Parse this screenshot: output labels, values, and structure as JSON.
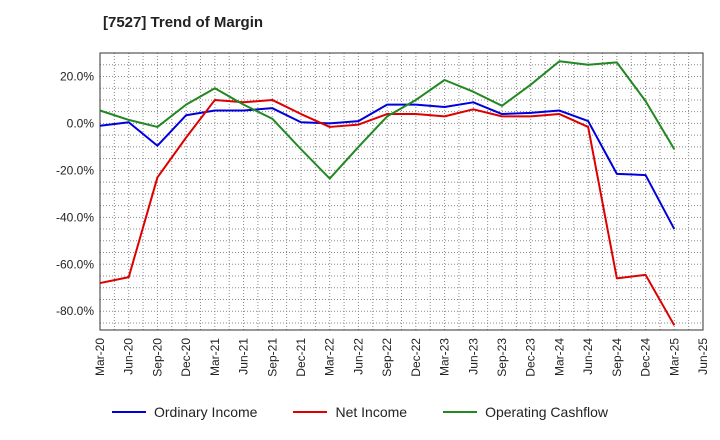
{
  "chart_data": {
    "type": "line",
    "title": "[7527]  Trend of Margin",
    "xlabel": "",
    "ylabel": "",
    "x": [
      "Mar-20",
      "Jun-20",
      "Sep-20",
      "Dec-20",
      "Mar-21",
      "Jun-21",
      "Sep-21",
      "Dec-21",
      "Mar-22",
      "Jun-22",
      "Sep-22",
      "Dec-22",
      "Mar-23",
      "Jun-23",
      "Sep-23",
      "Dec-23",
      "Mar-24",
      "Jun-24",
      "Sep-24",
      "Dec-24",
      "Mar-25",
      "Jun-25"
    ],
    "ylim": [
      -88,
      30
    ],
    "yticks": [
      20,
      0,
      -20,
      -40,
      -60,
      -80
    ],
    "ytick_labels": [
      "20.0%",
      "0.0%",
      "-20.0%",
      "-40.0%",
      "-60.0%",
      "-80.0%"
    ],
    "grid": true,
    "legend_position": "bottom",
    "series": [
      {
        "name": "Ordinary Income",
        "color": "#0000dd",
        "values": [
          -1,
          0.5,
          -9.5,
          3.5,
          5.5,
          5.5,
          6.5,
          0.5,
          0,
          1,
          8,
          8,
          7,
          9,
          4,
          4.5,
          5.5,
          1,
          -21.5,
          -22,
          -45,
          null
        ]
      },
      {
        "name": "Net Income",
        "color": "#dd0000",
        "values": [
          -68,
          -65.5,
          -23,
          -6,
          10,
          9,
          10,
          4,
          -1.5,
          -0.5,
          4,
          4,
          3,
          6,
          3,
          3,
          4,
          -1.5,
          -66,
          -64.5,
          -86,
          null
        ]
      },
      {
        "name": "Operating Cashflow",
        "color": "#228822",
        "values": [
          5.5,
          1.5,
          -1.5,
          8,
          15,
          8,
          2,
          -11,
          -23.5,
          -10,
          3,
          10,
          18.5,
          13.5,
          7.5,
          16.5,
          26.5,
          25,
          26,
          9.5,
          -11,
          null
        ]
      }
    ]
  }
}
